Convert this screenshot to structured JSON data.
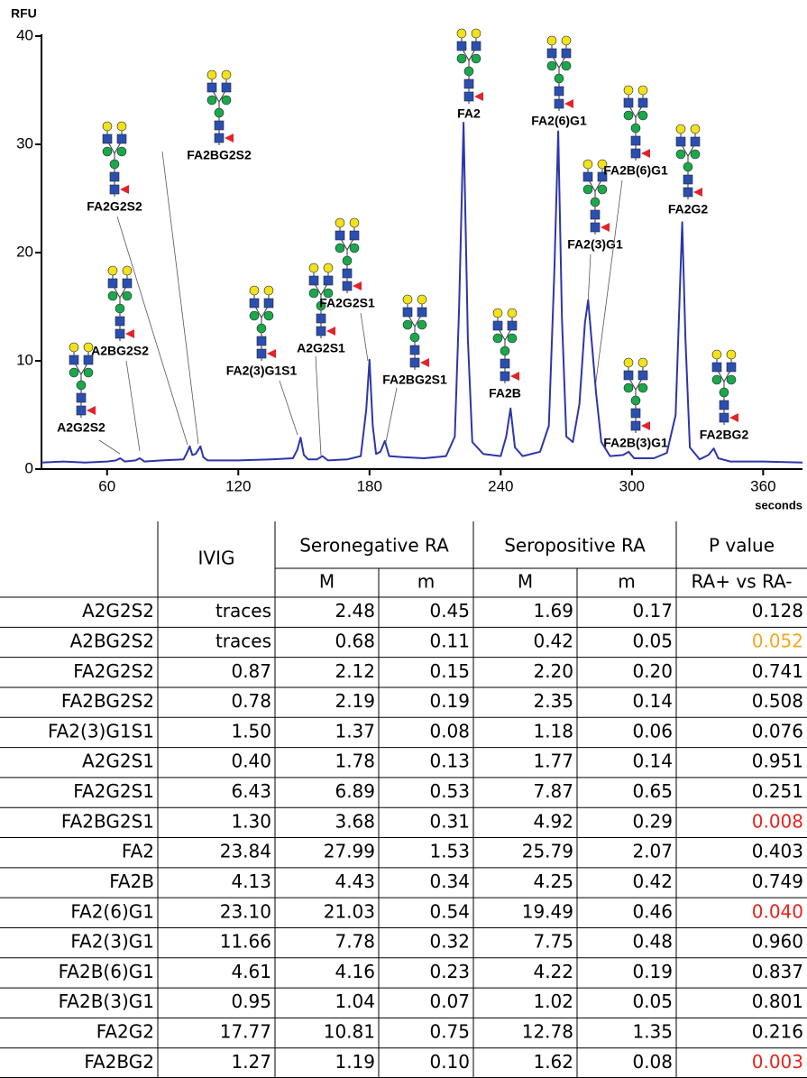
{
  "chart_data": {
    "type": "line",
    "y_label": "RFU",
    "x_label": "seconds",
    "x": [
      30,
      40,
      50,
      60,
      64,
      66,
      68,
      73,
      75,
      77,
      85,
      95,
      96.5,
      97.8,
      99,
      100.5,
      102.7,
      104,
      106,
      120,
      135,
      145,
      147,
      148.5,
      150,
      152,
      156,
      158.5,
      161,
      170,
      176,
      178.5,
      180,
      181.5,
      183,
      185,
      187,
      189,
      195,
      205,
      215,
      219,
      221,
      223,
      225,
      227,
      232,
      240,
      242.5,
      244.5,
      246.5,
      250,
      258,
      262,
      264.5,
      266.3,
      268,
      270,
      273,
      276,
      278.5,
      280,
      281.5,
      283.6,
      286,
      290,
      296,
      298.5,
      301,
      310,
      316,
      320,
      322,
      323,
      324.5,
      326.5,
      331,
      335,
      337.4,
      339.5,
      345,
      360,
      378
    ],
    "values": [
      0.6,
      0.7,
      0.6,
      0.7,
      0.8,
      1.0,
      0.7,
      0.8,
      1.0,
      0.7,
      0.8,
      0.9,
      1.5,
      2.1,
      1.3,
      1.4,
      2.1,
      1.1,
      0.8,
      0.8,
      0.9,
      1.0,
      1.8,
      2.9,
      1.3,
      0.9,
      0.9,
      1.2,
      0.8,
      0.9,
      1.2,
      5.5,
      10.1,
      4.0,
      1.4,
      1.6,
      2.6,
      1.2,
      1.1,
      1.0,
      1.2,
      3,
      15,
      32,
      12,
      2.5,
      1.4,
      1.2,
      3.0,
      5.6,
      2.0,
      1.2,
      1.6,
      4,
      18,
      31.2,
      14,
      3,
      2.5,
      6,
      13.5,
      15.6,
      12,
      7,
      2.5,
      1.2,
      1.3,
      1.6,
      1.0,
      1.0,
      1.5,
      5,
      17,
      22.8,
      12,
      2.0,
      0.9,
      1.3,
      1.9,
      1.0,
      0.7,
      0.7,
      0.6
    ],
    "color": "#2d36a8",
    "xlim": [
      30,
      378
    ],
    "ylim": [
      0,
      40
    ],
    "xticks": [
      60,
      120,
      180,
      240,
      300,
      360
    ],
    "yticks": [
      0,
      10,
      20,
      30,
      40
    ],
    "annotations": [
      "A2G2S2",
      "A2BG2S2",
      "FA2G2S2",
      "FA2BG2S2",
      "FA2(3)G1S1",
      "A2G2S1",
      "FA2G2S1",
      "FA2BG2S1",
      "FA2",
      "FA2B",
      "FA2(6)G1",
      "FA2(3)G1",
      "FA2B(6)G1",
      "FA2B(3)G1",
      "FA2G2",
      "FA2BG2"
    ]
  },
  "table": {
    "header1": [
      "IVIG",
      "Seronegative RA",
      "Seropositive RA",
      "P value"
    ],
    "header2": [
      "M",
      "m",
      "M",
      "m",
      "RA+ vs RA-"
    ],
    "rows": [
      {
        "cells": [
          "A2G2S2",
          "traces",
          "2.48",
          "0.45",
          "1.69",
          "0.17",
          "0.128"
        ]
      },
      {
        "cells": [
          "A2BG2S2",
          "traces",
          "0.68",
          "0.11",
          "0.42",
          "0.05",
          "0.052"
        ],
        "p_color": "#f5a623"
      },
      {
        "cells": [
          "FA2G2S2",
          "0.87",
          "2.12",
          "0.15",
          "2.20",
          "0.20",
          "0.741"
        ]
      },
      {
        "cells": [
          "FA2BG2S2",
          "0.78",
          "2.19",
          "0.19",
          "2.35",
          "0.14",
          "0.508"
        ]
      },
      {
        "cells": [
          "FA2(3)G1S1",
          "1.50",
          "1.37",
          "0.08",
          "1.18",
          "0.06",
          "0.076"
        ]
      },
      {
        "cells": [
          "A2G2S1",
          "0.40",
          "1.78",
          "0.13",
          "1.77",
          "0.14",
          "0.951"
        ]
      },
      {
        "cells": [
          "FA2G2S1",
          "6.43",
          "6.89",
          "0.53",
          "7.87",
          "0.65",
          "0.251"
        ]
      },
      {
        "cells": [
          "FA2BG2S1",
          "1.30",
          "3.68",
          "0.31",
          "4.92",
          "0.29",
          "0.008"
        ],
        "p_color": "#e8231c"
      },
      {
        "cells": [
          "FA2",
          "23.84",
          "27.99",
          "1.53",
          "25.79",
          "2.07",
          "0.403"
        ]
      },
      {
        "cells": [
          "FA2B",
          "4.13",
          "4.43",
          "0.34",
          "4.25",
          "0.42",
          "0.749"
        ]
      },
      {
        "cells": [
          "FA2(6)G1",
          "23.10",
          "21.03",
          "0.54",
          "19.49",
          "0.46",
          "0.040"
        ],
        "p_color": "#e8231c"
      },
      {
        "cells": [
          "FA2(3)G1",
          "11.66",
          "7.78",
          "0.32",
          "7.75",
          "0.48",
          "0.960"
        ]
      },
      {
        "cells": [
          "FA2B(6)G1",
          "4.61",
          "4.16",
          "0.23",
          "4.22",
          "0.19",
          "0.837"
        ]
      },
      {
        "cells": [
          "FA2B(3)G1",
          "0.95",
          "1.04",
          "0.07",
          "1.02",
          "0.05",
          "0.801"
        ]
      },
      {
        "cells": [
          "FA2G2",
          "17.77",
          "10.81",
          "0.75",
          "12.78",
          "1.35",
          "0.216"
        ]
      },
      {
        "cells": [
          "FA2BG2",
          "1.27",
          "1.19",
          "0.10",
          "1.62",
          "0.08",
          "0.003"
        ],
        "p_color": "#e8231c"
      }
    ]
  }
}
